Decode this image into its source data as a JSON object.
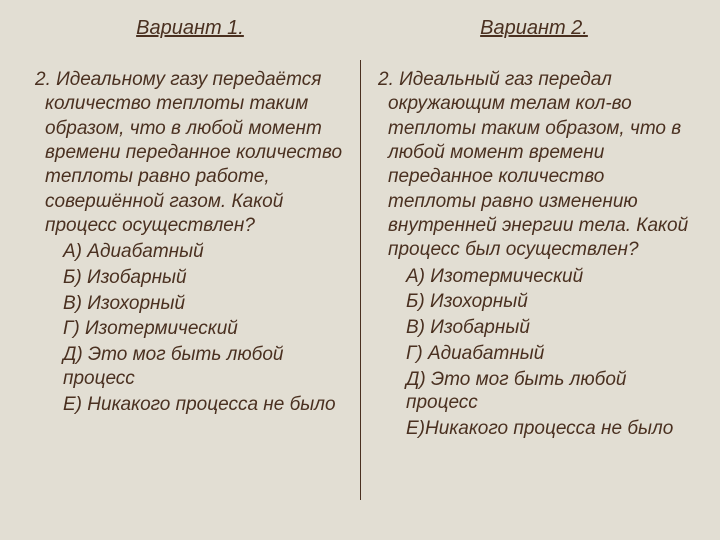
{
  "background_color": "#e2ded3",
  "text_color": "#4a3020",
  "font_style": "italic",
  "title_fontsize": 20,
  "body_fontsize": 19,
  "left": {
    "title": "Вариант 1.",
    "question": "2. Идеальному газу передаётся количество теплоты таким образом, что в любой момент времени переданное количество теплоты равно работе, совершённой газом. Какой процесс осуществлен?",
    "answers": {
      "a": "А) Адиабатный",
      "b": "Б) Изобарный",
      "c": "В) Изохорный",
      "d": "Г) Изотермический",
      "e": "Д) Это мог быть любой процесс",
      "f": "Е) Никакого процесса не было"
    }
  },
  "right": {
    "title": "Вариант 2.",
    "question": "2. Идеальный газ передал окружающим телам кол-во теплоты таким образом, что в любой момент времени переданное количество теплоты равно изменению внутренней энергии тела. Какой процесс был осуществлен?",
    "answers": {
      "a": "А) Изотермический",
      "b": "Б) Изохорный",
      "c": "В) Изобарный",
      "d": "Г) Адиабатный",
      "e": "Д) Это мог быть любой процесс",
      "f": "Е)Никакого процесса не было"
    }
  }
}
